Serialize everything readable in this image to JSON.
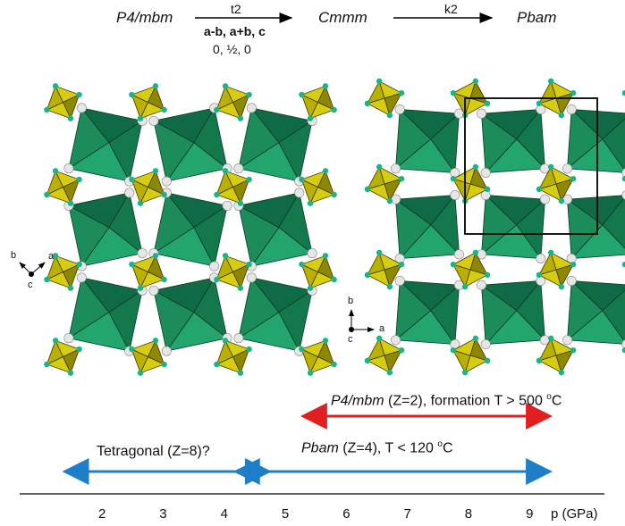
{
  "scheme": {
    "group1": "P4/mbm",
    "arrow1_top": "t2",
    "arrow1_bottom": "a-b, a+b, c",
    "arrow1_origin": "0, ½, 0",
    "group2": "Cmmm",
    "arrow2_top": "k2",
    "group3": "Pbam"
  },
  "left_structure": {
    "axes": {
      "b": "b",
      "a": "a",
      "c": "c"
    }
  },
  "right_structure": {
    "axes": {
      "b": "b",
      "a": "a",
      "c": "c"
    }
  },
  "phase_diagram": {
    "axis_label": "p (GPa)",
    "ticks": [
      "2",
      "3",
      "4",
      "5",
      "6",
      "7",
      "8",
      "9"
    ],
    "ranges": [
      {
        "label_italic": "P4/mbm",
        "label_rest": " (Z=2), formation T > 500 ",
        "sup": "o",
        "unit": "C",
        "from": 5.6,
        "to": 9.0,
        "color": "#e02020"
      },
      {
        "label_plain": "Tetragonal (Z=8)?",
        "from": 1.7,
        "to": 4.4,
        "color": "#1f7ec8"
      },
      {
        "label_italic": "Pbam",
        "label_rest": " (Z=4), T < 120 ",
        "sup": "o",
        "unit": "C",
        "from": 4.5,
        "to": 9.0,
        "color": "#1f7ec8"
      }
    ]
  },
  "colors": {
    "octahedron_dark": "#0f6b45",
    "octahedron_light": "#22a66e",
    "tetrahedron": "#d6cc10",
    "tetrahedron_dark": "#8e8700",
    "atom_white": "#e6e6e6",
    "atom_green": "#18b58a",
    "red_arrow": "#e02020",
    "blue_arrow": "#1f7ec8"
  }
}
